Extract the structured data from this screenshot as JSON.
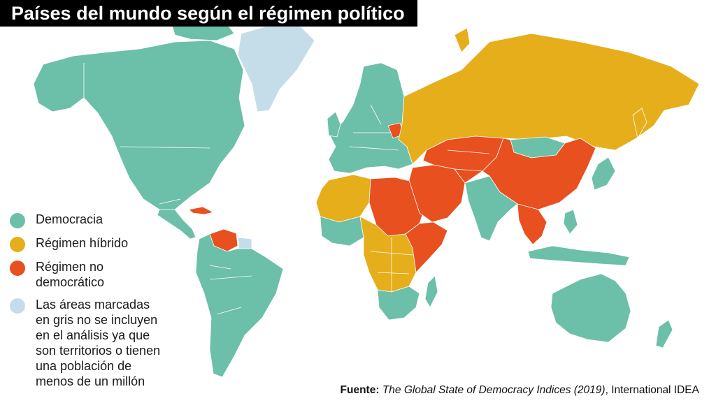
{
  "title": "Países del mundo según el régimen político",
  "colors": {
    "democracia": "#6cbfa8",
    "hibrido": "#e5ae1a",
    "no_democratico": "#e8501f",
    "excluido": "#c5dde9"
  },
  "legend": [
    {
      "key": "democracia",
      "label": "Democracia"
    },
    {
      "key": "hibrido",
      "label": "Régimen híbrido"
    },
    {
      "key": "no_democratico",
      "label": "Régimen no\ndemocrático"
    },
    {
      "key": "excluido",
      "label": "Las áreas marcadas\nen gris no se incluyen\nen el análisis ya que\nson territorios o tienen\nuna población de\nmenos de un millón"
    }
  ],
  "source": {
    "label": "Fuente:",
    "title": "The Global State of Democracy Indices (2019)",
    "publisher": ", International IDEA"
  },
  "regions": [
    {
      "name": "north-america",
      "status": "democracia"
    },
    {
      "name": "central-america",
      "status": "democracia"
    },
    {
      "name": "cuba",
      "status": "no_democratico"
    },
    {
      "name": "venezuela",
      "status": "no_democratico"
    },
    {
      "name": "south-america",
      "status": "democracia"
    },
    {
      "name": "guyanas",
      "status": "excluido"
    },
    {
      "name": "greenland",
      "status": "excluido"
    },
    {
      "name": "europe",
      "status": "democracia"
    },
    {
      "name": "belarus",
      "status": "no_democratico"
    },
    {
      "name": "russia",
      "status": "hibrido"
    },
    {
      "name": "north-africa-west",
      "status": "hibrido"
    },
    {
      "name": "north-africa-east",
      "status": "no_democratico"
    },
    {
      "name": "west-africa",
      "status": "democracia"
    },
    {
      "name": "central-africa",
      "status": "hibrido"
    },
    {
      "name": "east-africa",
      "status": "no_democratico"
    },
    {
      "name": "southern-africa",
      "status": "democracia"
    },
    {
      "name": "madagascar",
      "status": "democracia"
    },
    {
      "name": "middle-east",
      "status": "no_democratico"
    },
    {
      "name": "central-asia",
      "status": "no_democratico"
    },
    {
      "name": "mongolia",
      "status": "democracia"
    },
    {
      "name": "china",
      "status": "no_democratico"
    },
    {
      "name": "india",
      "status": "democracia"
    },
    {
      "name": "southeast-asia",
      "status": "no_democratico"
    },
    {
      "name": "japan",
      "status": "democracia"
    },
    {
      "name": "indonesia",
      "status": "democracia"
    },
    {
      "name": "australia",
      "status": "democracia"
    },
    {
      "name": "new-zealand",
      "status": "democracia"
    }
  ]
}
